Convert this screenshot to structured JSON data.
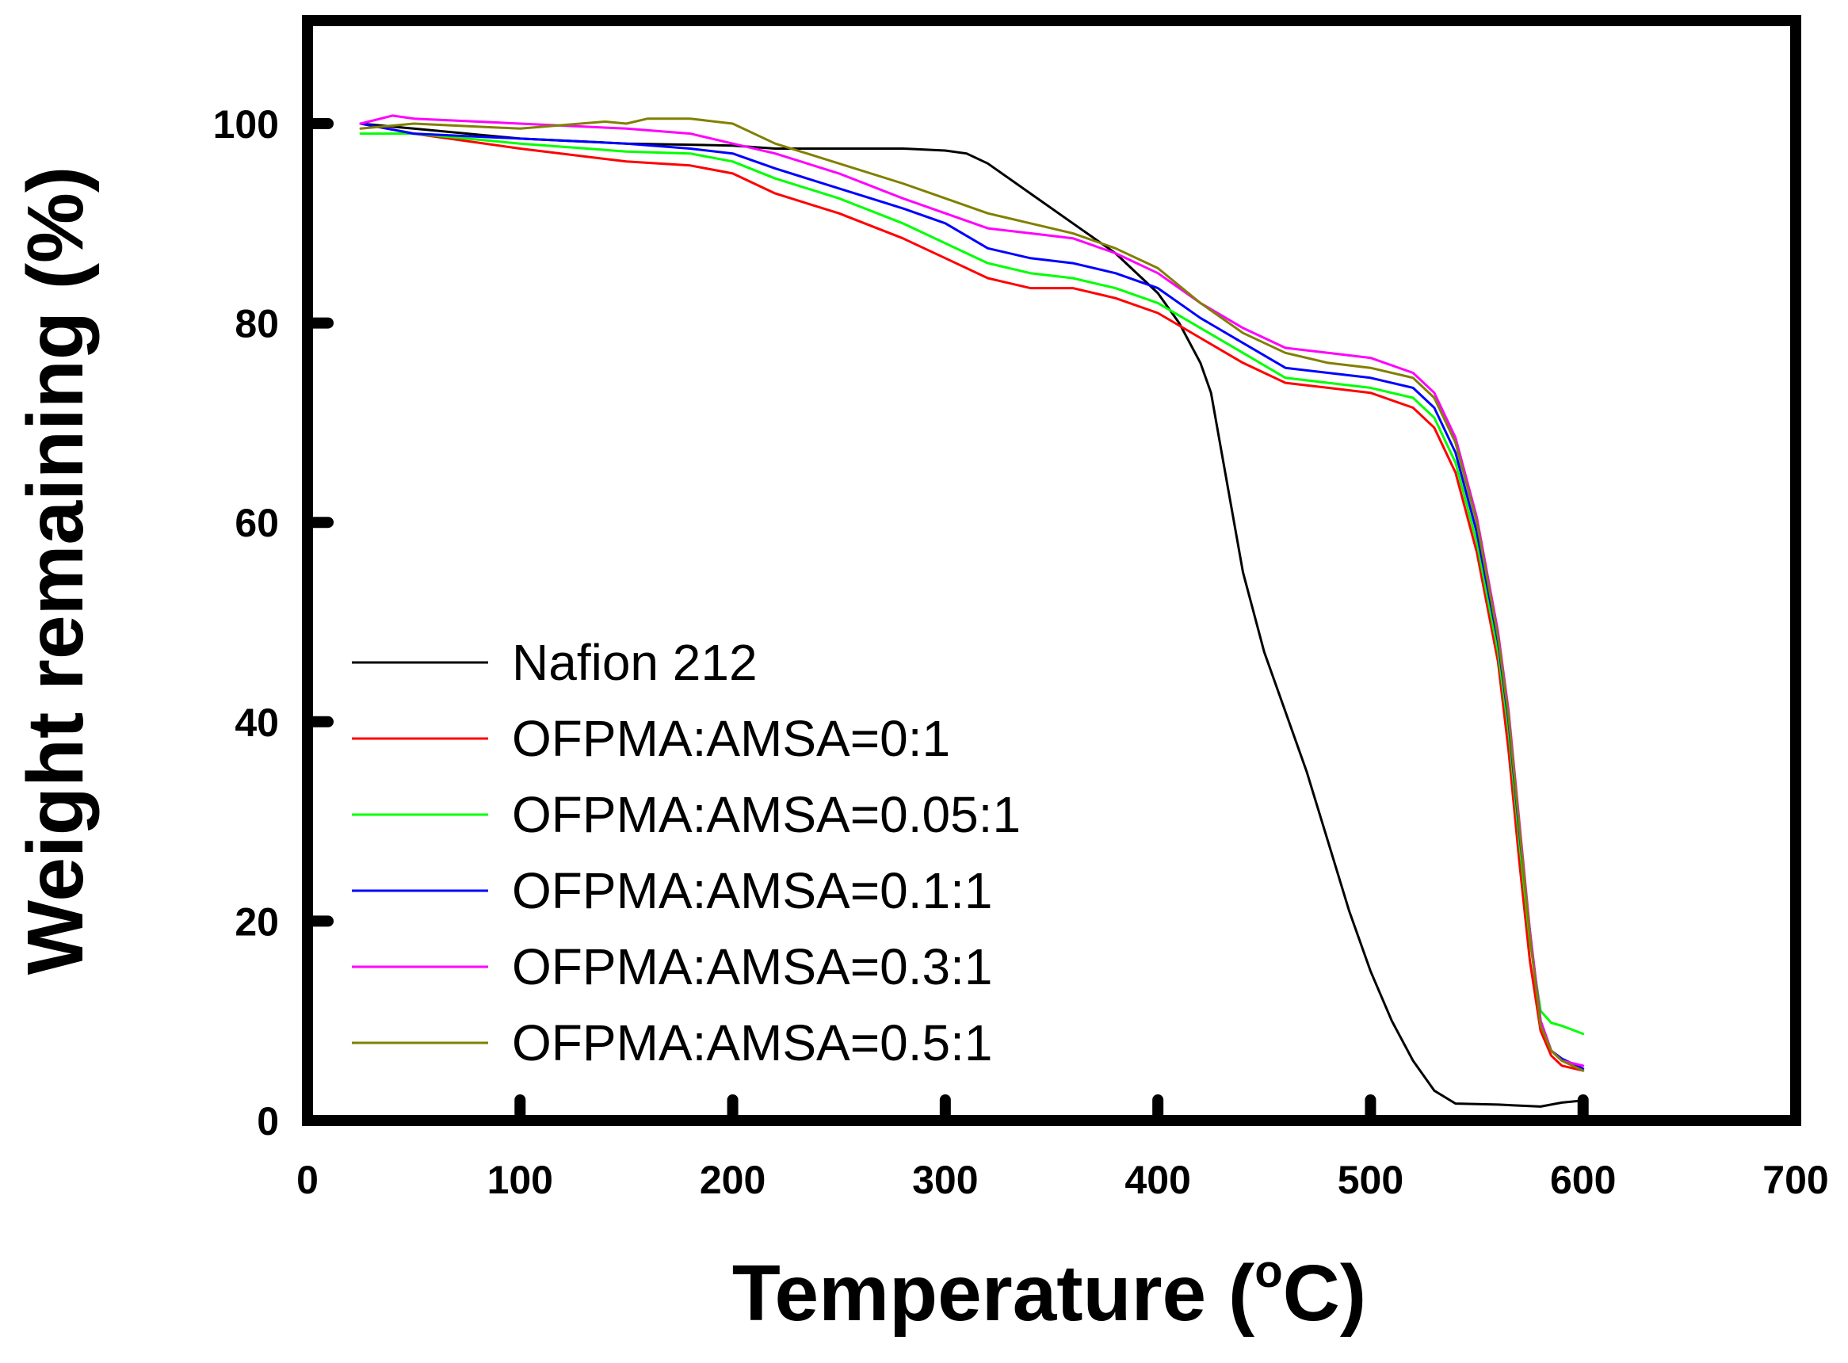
{
  "chart_data": {
    "type": "line",
    "title": "",
    "xlabel_prefix": "Temperature (",
    "xlabel_degree": "o",
    "xlabel_suffix": "C)",
    "ylabel": "Weight remaining (%)",
    "xlim": [
      0,
      700
    ],
    "ylim": [
      0,
      110
    ],
    "x_ticks": [
      0,
      100,
      200,
      300,
      400,
      500,
      600,
      700
    ],
    "y_ticks": [
      0,
      20,
      40,
      60,
      80,
      100
    ],
    "x_tick_labels": [
      "0",
      "100",
      "200",
      "300",
      "400",
      "500",
      "600",
      "700"
    ],
    "y_tick_labels": [
      "0",
      "20",
      "40",
      "60",
      "80",
      "100"
    ],
    "grid": false,
    "legend_position": "lower-left",
    "series": [
      {
        "name": "Nafion 212",
        "color": "#000000",
        "x": [
          25,
          50,
          100,
          150,
          200,
          220,
          250,
          280,
          300,
          310,
          320,
          340,
          360,
          380,
          400,
          410,
          420,
          425,
          430,
          440,
          450,
          470,
          480,
          490,
          500,
          510,
          520,
          530,
          540,
          560,
          580,
          590,
          600
        ],
        "y": [
          100,
          99.5,
          98.5,
          98,
          97.8,
          97.5,
          97.5,
          97.5,
          97.3,
          97,
          96,
          93,
          90,
          87,
          83,
          80,
          76,
          73,
          67,
          55,
          47,
          35,
          28,
          21,
          15,
          10,
          6,
          3,
          1.7,
          1.6,
          1.4,
          1.8,
          2.0
        ]
      },
      {
        "name": "OFPMA:AMSA=0:1",
        "color": "#ff0000",
        "x": [
          25,
          50,
          100,
          150,
          180,
          200,
          220,
          250,
          280,
          300,
          320,
          340,
          360,
          380,
          400,
          420,
          440,
          460,
          480,
          500,
          520,
          530,
          540,
          550,
          560,
          565,
          570,
          575,
          580,
          585,
          590,
          600
        ],
        "y": [
          100,
          99,
          97.5,
          96.2,
          95.8,
          95,
          93,
          91,
          88.5,
          86.5,
          84.5,
          83.5,
          83.5,
          82.5,
          81,
          78.5,
          76,
          74,
          73.5,
          73,
          71.5,
          69.5,
          65,
          57,
          46,
          37,
          26,
          16,
          9,
          6.5,
          5.5,
          5
        ]
      },
      {
        "name": "OFPMA:AMSA=0.05:1",
        "color": "#00ff00",
        "x": [
          25,
          50,
          100,
          150,
          180,
          200,
          220,
          250,
          280,
          300,
          320,
          340,
          360,
          380,
          400,
          420,
          440,
          460,
          480,
          500,
          520,
          530,
          540,
          550,
          560,
          565,
          570,
          575,
          580,
          585,
          590,
          600
        ],
        "y": [
          99,
          99,
          98,
          97.2,
          97,
          96.2,
          94.5,
          92.5,
          90,
          88,
          86,
          85,
          84.5,
          83.5,
          82,
          79.5,
          77,
          74.5,
          74,
          73.5,
          72.5,
          70.5,
          66,
          58,
          47,
          39,
          28,
          18,
          11,
          9.8,
          9.5,
          8.7
        ]
      },
      {
        "name": "OFPMA:AMSA=0.1:1",
        "color": "#0000ff",
        "x": [
          25,
          50,
          100,
          150,
          180,
          200,
          220,
          250,
          280,
          300,
          320,
          340,
          360,
          380,
          400,
          420,
          440,
          460,
          480,
          500,
          520,
          530,
          540,
          550,
          560,
          565,
          570,
          575,
          580,
          585,
          590,
          600
        ],
        "y": [
          100,
          99,
          98.5,
          98,
          97.5,
          97,
          95.5,
          93.5,
          91.5,
          90,
          87.5,
          86.5,
          86,
          85,
          83.5,
          80.5,
          78,
          75.5,
          75,
          74.5,
          73.5,
          71.5,
          67,
          59,
          48,
          40,
          29,
          19,
          10,
          7,
          6.2,
          5.2
        ]
      },
      {
        "name": "OFPMA:AMSA=0.3:1",
        "color": "#ff00ff",
        "x": [
          25,
          40,
          50,
          100,
          150,
          180,
          200,
          220,
          250,
          280,
          300,
          320,
          340,
          360,
          380,
          400,
          420,
          440,
          460,
          480,
          500,
          520,
          530,
          540,
          550,
          560,
          565,
          570,
          575,
          580,
          585,
          590,
          600
        ],
        "y": [
          100,
          100.8,
          100.5,
          100,
          99.5,
          99,
          98,
          97,
          95,
          92.5,
          91,
          89.5,
          89,
          88.5,
          87,
          85,
          82,
          79.5,
          77.5,
          77,
          76.5,
          75,
          73,
          68.5,
          60.5,
          49,
          41,
          30,
          19,
          10,
          7,
          6,
          5.5
        ]
      },
      {
        "name": "OFPMA:AMSA=0.5:1",
        "color": "#808000",
        "x": [
          25,
          50,
          100,
          140,
          150,
          160,
          180,
          200,
          220,
          250,
          280,
          300,
          320,
          340,
          360,
          380,
          400,
          420,
          440,
          460,
          480,
          500,
          520,
          530,
          540,
          550,
          560,
          565,
          570,
          575,
          580,
          585,
          590,
          600
        ],
        "y": [
          99.5,
          100,
          99.5,
          100.2,
          100,
          100.5,
          100.5,
          100,
          98,
          96,
          94,
          92.5,
          91,
          90,
          89,
          87.5,
          85.5,
          82,
          79,
          77,
          76,
          75.5,
          74.5,
          72.5,
          68,
          60,
          48.5,
          40.5,
          29.5,
          18.5,
          9.5,
          7,
          6,
          5
        ]
      }
    ]
  }
}
